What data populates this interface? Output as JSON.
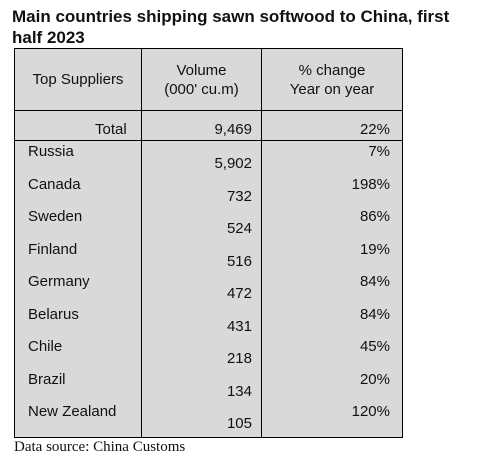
{
  "chart_data": {
    "type": "table",
    "title": "Main countries shipping sawn softwood to China, first half 2023",
    "columns": [
      "Top Suppliers",
      "Volume (000' cu.m)",
      "% change Year on year"
    ],
    "header": {
      "col1": "Top Suppliers",
      "col2_line1": "Volume",
      "col2_line2": "(000' cu.m)",
      "col3_line1": "% change",
      "col3_line2": "Year on year"
    },
    "total": {
      "label": "Total",
      "volume": "9,469",
      "change": "22%"
    },
    "rows": [
      {
        "country": "Russia",
        "volume": "5,902",
        "change": "7%"
      },
      {
        "country": "Canada",
        "volume": "732",
        "change": "198%"
      },
      {
        "country": "Sweden",
        "volume": "524",
        "change": "86%"
      },
      {
        "country": "Finland",
        "volume": "516",
        "change": "19%"
      },
      {
        "country": "Germany",
        "volume": "472",
        "change": "84%"
      },
      {
        "country": "Belarus",
        "volume": "431",
        "change": "84%"
      },
      {
        "country": "Chile",
        "volume": "218",
        "change": "45%"
      },
      {
        "country": "Brazil",
        "volume": "134",
        "change": "20%"
      },
      {
        "country": "New Zealand",
        "volume": "105",
        "change": "120%"
      }
    ],
    "source": "Data source: China Customs"
  }
}
